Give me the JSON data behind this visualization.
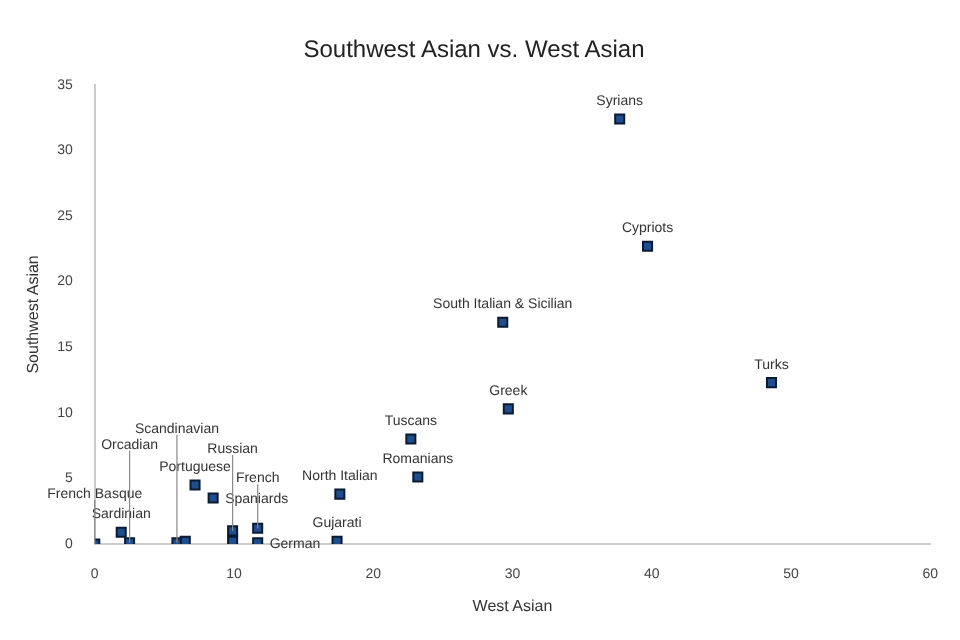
{
  "chart_data": {
    "type": "scatter",
    "title": "Southwest Asian vs. West Asian",
    "xlabel": "West Asian",
    "ylabel": "Southwest Asian",
    "x": [
      37.7,
      39.7,
      29.3,
      48.6,
      29.7,
      22.7,
      23.2,
      17.6,
      17.4,
      7.2,
      8.5,
      1.9,
      0,
      2.5,
      5.9,
      6.5,
      9.9,
      9.9,
      11.7,
      11.7
    ],
    "values": [
      32.4,
      22.7,
      16.9,
      12.3,
      10.3,
      8.0,
      5.1,
      3.8,
      0.2,
      4.5,
      3.5,
      0.9,
      0,
      0.1,
      0.1,
      0.2,
      1.0,
      0.2,
      1.2,
      0.1
    ],
    "color": "#1f4e8c",
    "marker": "square",
    "xlim": [
      0,
      60
    ],
    "ylim": [
      0,
      35
    ],
    "xticks": [
      0,
      10,
      20,
      30,
      40,
      50,
      60
    ],
    "yticks": [
      0,
      5,
      10,
      15,
      20,
      25,
      30,
      35
    ],
    "grid": false,
    "legend": false,
    "annotations": [
      {
        "text": "Syrians",
        "x": 37.7,
        "y": 32.4
      },
      {
        "text": "Cypriots",
        "x": 39.7,
        "y": 22.7
      },
      {
        "text": "South Italian & Sicilian",
        "x": 29.3,
        "y": 16.9
      },
      {
        "text": "Turks",
        "x": 48.6,
        "y": 12.3
      },
      {
        "text": "Greek",
        "x": 29.7,
        "y": 10.3
      },
      {
        "text": "Tuscans",
        "x": 22.7,
        "y": 8.0
      },
      {
        "text": "Romanians",
        "x": 23.2,
        "y": 5.1
      },
      {
        "text": "North Italian",
        "x": 17.6,
        "y": 3.8
      },
      {
        "text": "Gujarati",
        "x": 17.4,
        "y": 0.2
      },
      {
        "text": "Portuguese",
        "x": 7.2,
        "y": 4.5
      },
      {
        "text": "Spaniards",
        "x": 8.5,
        "y": 3.5
      },
      {
        "text": "Sardinian",
        "x": 1.9,
        "y": 0.9
      },
      {
        "text": "French Basque",
        "x": 0,
        "y": 0
      },
      {
        "text": "Orcadian",
        "x": 2.5,
        "y": 0.1
      },
      {
        "text": "Scandinavian",
        "x": 5.9,
        "y": 0.1
      },
      {
        "text": "Russian",
        "x": 9.9,
        "y": 1.0
      },
      {
        "text": "French",
        "x": 11.7,
        "y": 1.2
      },
      {
        "text": "German",
        "x": 11.7,
        "y": 0.1
      }
    ]
  }
}
